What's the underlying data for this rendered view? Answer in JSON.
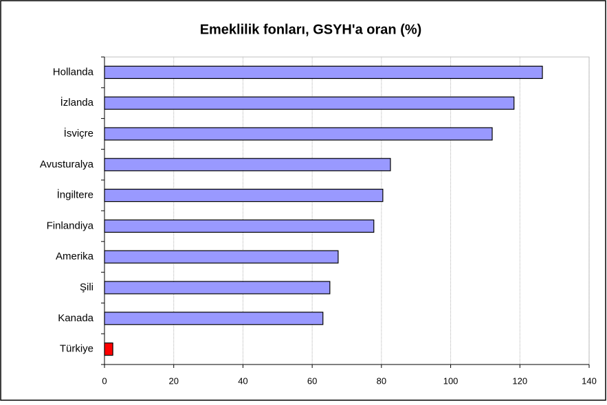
{
  "chart_data": {
    "type": "hbar",
    "title": "Emeklilik fonları, GSYH'a oran (%)",
    "categories": [
      "Hollanda",
      "İzlanda",
      "İsviçre",
      "Avusturalya",
      "İngiltere",
      "Finlandiya",
      "Amerika",
      "Şili",
      "Kanada",
      "Türkiye"
    ],
    "values": [
      126.5,
      118.3,
      112,
      82.6,
      80.4,
      77.8,
      67.5,
      65.1,
      63.1,
      2.4
    ],
    "colors": [
      "#9999ff",
      "#9999ff",
      "#9999ff",
      "#9999ff",
      "#9999ff",
      "#9999ff",
      "#9999ff",
      "#9999ff",
      "#9999ff",
      "#ff0000"
    ],
    "xlim": [
      0,
      140
    ],
    "xticks": [
      0,
      20,
      40,
      60,
      80,
      100,
      120,
      140
    ],
    "grid": true
  }
}
